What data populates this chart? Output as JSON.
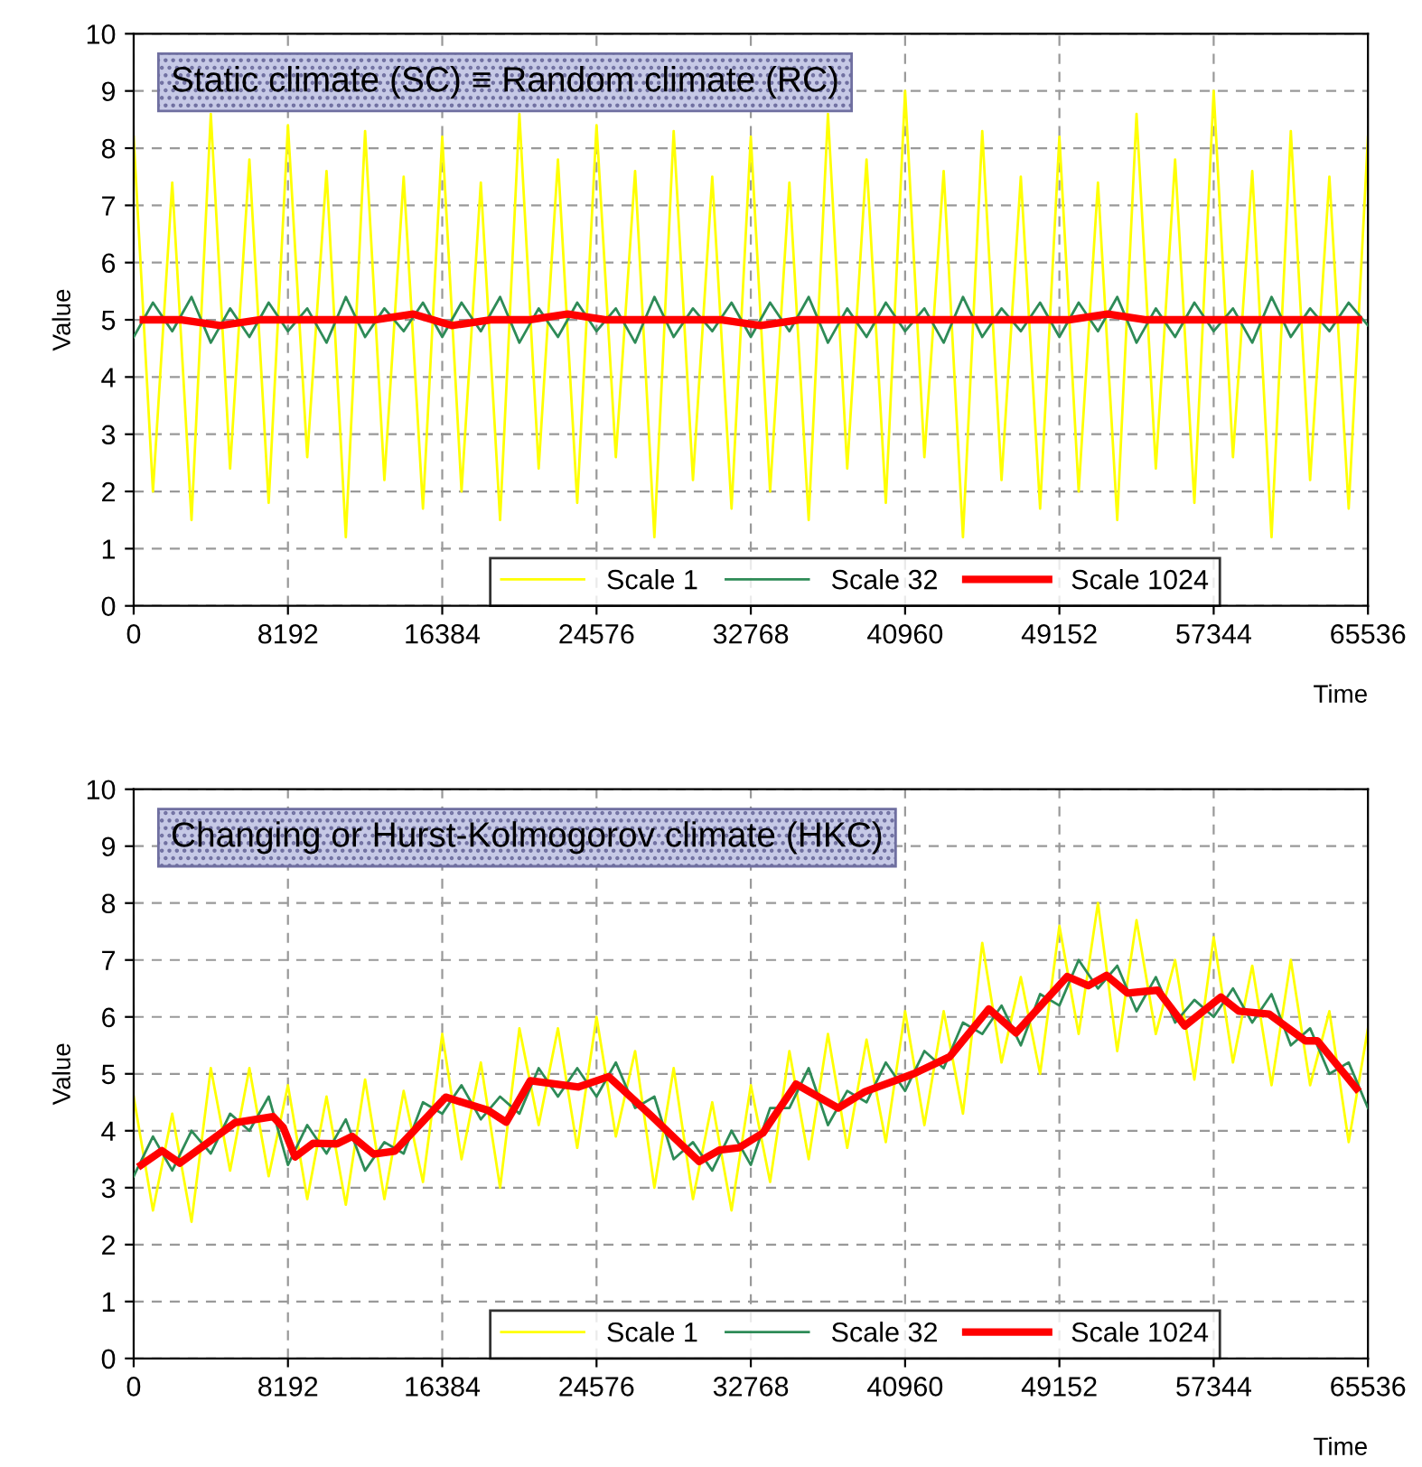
{
  "chart_data": [
    {
      "type": "line",
      "title": "Static climate (SC) ≡ Random climate (RC)",
      "xlabel": "Time",
      "ylabel": "Value",
      "xlim": [
        0,
        65536
      ],
      "xticks": [
        0,
        8192,
        16384,
        24576,
        32768,
        40960,
        49152,
        57344,
        65536
      ],
      "ylim": [
        0,
        10
      ],
      "yticks": [
        0,
        1,
        2,
        3,
        4,
        5,
        6,
        7,
        8,
        9,
        10
      ],
      "grid": true,
      "legend": "bottom right",
      "x": [
        0,
        1024,
        2048,
        3072,
        4096,
        5120,
        6144,
        7168,
        8192,
        9216,
        10240,
        11264,
        12288,
        13312,
        14336,
        15360,
        16384,
        17408,
        18432,
        19456,
        20480,
        21504,
        22528,
        23552,
        24576,
        25600,
        26624,
        27648,
        28672,
        29696,
        30720,
        31744,
        32768,
        33792,
        34816,
        35840,
        36864,
        37888,
        38912,
        39936,
        40960,
        41984,
        43008,
        44032,
        45056,
        46080,
        47104,
        48128,
        49152,
        50176,
        51200,
        52224,
        53248,
        54272,
        55296,
        56320,
        57344,
        58368,
        59392,
        60416,
        61440,
        62464,
        63488,
        64512,
        65536
      ],
      "series": [
        {
          "name": "Scale 1",
          "color": "#ffff00",
          "values": [
            8.2,
            2.0,
            7.4,
            1.5,
            8.6,
            2.4,
            7.8,
            1.8,
            8.4,
            2.6,
            7.6,
            1.2,
            8.3,
            2.2,
            7.5,
            1.7,
            8.2,
            2.0,
            7.4,
            1.5,
            8.6,
            2.4,
            7.8,
            1.8,
            8.4,
            2.6,
            7.6,
            1.2,
            8.3,
            2.2,
            7.5,
            1.7,
            8.2,
            2.0,
            7.4,
            1.5,
            8.6,
            2.4,
            7.8,
            1.8,
            9.0,
            2.6,
            7.6,
            1.2,
            8.3,
            2.2,
            7.5,
            1.7,
            8.2,
            2.0,
            7.4,
            1.5,
            8.6,
            2.4,
            7.8,
            1.8,
            9.0,
            2.6,
            7.6,
            1.2,
            8.3,
            2.2,
            7.5,
            1.7,
            8.2
          ]
        },
        {
          "name": "Scale 32",
          "color": "#2e8b57",
          "values": [
            4.7,
            5.3,
            4.8,
            5.4,
            4.6,
            5.2,
            4.7,
            5.3,
            4.8,
            5.2,
            4.6,
            5.4,
            4.7,
            5.2,
            4.8,
            5.3,
            4.7,
            5.3,
            4.8,
            5.4,
            4.6,
            5.2,
            4.7,
            5.3,
            4.8,
            5.2,
            4.6,
            5.4,
            4.7,
            5.2,
            4.8,
            5.3,
            4.7,
            5.3,
            4.8,
            5.4,
            4.6,
            5.2,
            4.7,
            5.3,
            4.8,
            5.2,
            4.6,
            5.4,
            4.7,
            5.2,
            4.8,
            5.3,
            4.7,
            5.3,
            4.8,
            5.4,
            4.6,
            5.2,
            4.7,
            5.3,
            4.8,
            5.2,
            4.6,
            5.4,
            4.7,
            5.2,
            4.8,
            5.3,
            4.9
          ]
        },
        {
          "name": "Scale 1024",
          "color": "#ff0000",
          "x": [
            512,
            2560,
            4608,
            6656,
            8704,
            10752,
            12800,
            14848,
            16896,
            18944,
            20992,
            23040,
            25088,
            27136,
            29184,
            31232,
            33280,
            35328,
            37376,
            39424,
            41472,
            43520,
            45568,
            47616,
            49664,
            51712,
            53760,
            55808,
            57856,
            59904,
            61952,
            64000,
            65024
          ],
          "values": [
            5.0,
            5.0,
            4.9,
            5.0,
            5.0,
            5.0,
            5.0,
            5.1,
            4.9,
            5.0,
            5.0,
            5.1,
            5.0,
            5.0,
            5.0,
            5.0,
            4.9,
            5.0,
            5.0,
            5.0,
            5.0,
            5.0,
            5.0,
            5.0,
            5.0,
            5.1,
            5.0,
            5.0,
            5.0,
            5.0,
            5.0,
            5.0,
            5.0
          ]
        }
      ]
    },
    {
      "type": "line",
      "title": "Changing or Hurst-Kolmogorov climate (HKC)",
      "xlabel": "Time",
      "ylabel": "Value",
      "xlim": [
        0,
        65536
      ],
      "xticks": [
        0,
        8192,
        16384,
        24576,
        32768,
        40960,
        49152,
        57344,
        65536
      ],
      "ylim": [
        0,
        10
      ],
      "yticks": [
        0,
        1,
        2,
        3,
        4,
        5,
        6,
        7,
        8,
        9,
        10
      ],
      "grid": true,
      "legend": "bottom right",
      "x": [
        0,
        1024,
        2048,
        3072,
        4096,
        5120,
        6144,
        7168,
        8192,
        9216,
        10240,
        11264,
        12288,
        13312,
        14336,
        15360,
        16384,
        17408,
        18432,
        19456,
        20480,
        21504,
        22528,
        23552,
        24576,
        25600,
        26624,
        27648,
        28672,
        29696,
        30720,
        31744,
        32768,
        33792,
        34816,
        35840,
        36864,
        37888,
        38912,
        39936,
        40960,
        41984,
        43008,
        44032,
        45056,
        46080,
        47104,
        48128,
        49152,
        50176,
        51200,
        52224,
        53248,
        54272,
        55296,
        56320,
        57344,
        58368,
        59392,
        60416,
        61440,
        62464,
        63488,
        64512,
        65536
      ],
      "series": [
        {
          "name": "Scale 1",
          "color": "#ffff00",
          "values": [
            4.6,
            2.6,
            4.3,
            2.4,
            5.1,
            3.3,
            5.1,
            3.2,
            4.8,
            2.8,
            4.6,
            2.7,
            4.9,
            2.8,
            4.7,
            3.1,
            5.7,
            3.5,
            5.2,
            3.0,
            5.8,
            4.1,
            5.8,
            3.7,
            6.0,
            3.9,
            5.4,
            3.0,
            5.1,
            2.8,
            4.5,
            2.6,
            4.8,
            3.1,
            5.4,
            3.5,
            5.7,
            3.7,
            5.6,
            3.8,
            6.1,
            4.1,
            6.1,
            4.3,
            7.3,
            5.2,
            6.7,
            5.0,
            7.6,
            5.7,
            8.0,
            5.4,
            7.7,
            5.7,
            7.0,
            4.9,
            7.4,
            5.2,
            6.9,
            4.8,
            7.0,
            4.8,
            6.1,
            3.8,
            5.8
          ]
        },
        {
          "name": "Scale 32",
          "color": "#2e8b57",
          "values": [
            3.2,
            3.9,
            3.3,
            4.0,
            3.6,
            4.3,
            4.0,
            4.6,
            3.4,
            4.1,
            3.6,
            4.2,
            3.3,
            3.8,
            3.6,
            4.5,
            4.3,
            4.8,
            4.2,
            4.6,
            4.3,
            5.1,
            4.6,
            5.1,
            4.6,
            5.2,
            4.4,
            4.6,
            3.5,
            3.8,
            3.3,
            4.0,
            3.4,
            4.4,
            4.4,
            5.1,
            4.1,
            4.7,
            4.5,
            5.2,
            4.7,
            5.4,
            5.1,
            5.9,
            5.7,
            6.2,
            5.5,
            6.4,
            6.2,
            7.0,
            6.5,
            6.9,
            6.1,
            6.7,
            5.9,
            6.3,
            6.0,
            6.5,
            5.9,
            6.4,
            5.5,
            5.8,
            5.0,
            5.2,
            4.4
          ]
        },
        {
          "name": "Scale 1024",
          "color": "#ff0000",
          "x": [
            400,
            1500,
            2450,
            5380,
            7400,
            7940,
            8570,
            9530,
            10800,
            11600,
            12740,
            13860,
            16570,
            18800,
            19780,
            21060,
            23620,
            25220,
            27460,
            30020,
            31100,
            32128,
            33408,
            35168,
            37408,
            38848,
            41408,
            43328,
            45408,
            46848,
            49568,
            50688,
            51648,
            52768,
            54368,
            55808,
            57728,
            58688,
            60288,
            62208,
            62848,
            64928
          ],
          "values": [
            3.4,
            3.65,
            3.43,
            4.14,
            4.25,
            4.06,
            3.54,
            3.78,
            3.77,
            3.9,
            3.59,
            3.64,
            4.59,
            4.36,
            4.15,
            4.88,
            4.77,
            4.95,
            4.27,
            3.46,
            3.66,
            3.7,
            3.96,
            4.82,
            4.4,
            4.69,
            5.0,
            5.3,
            6.14,
            5.72,
            6.71,
            6.55,
            6.73,
            6.42,
            6.47,
            5.84,
            6.35,
            6.1,
            6.05,
            5.58,
            5.58,
            4.74
          ]
        }
      ]
    }
  ]
}
